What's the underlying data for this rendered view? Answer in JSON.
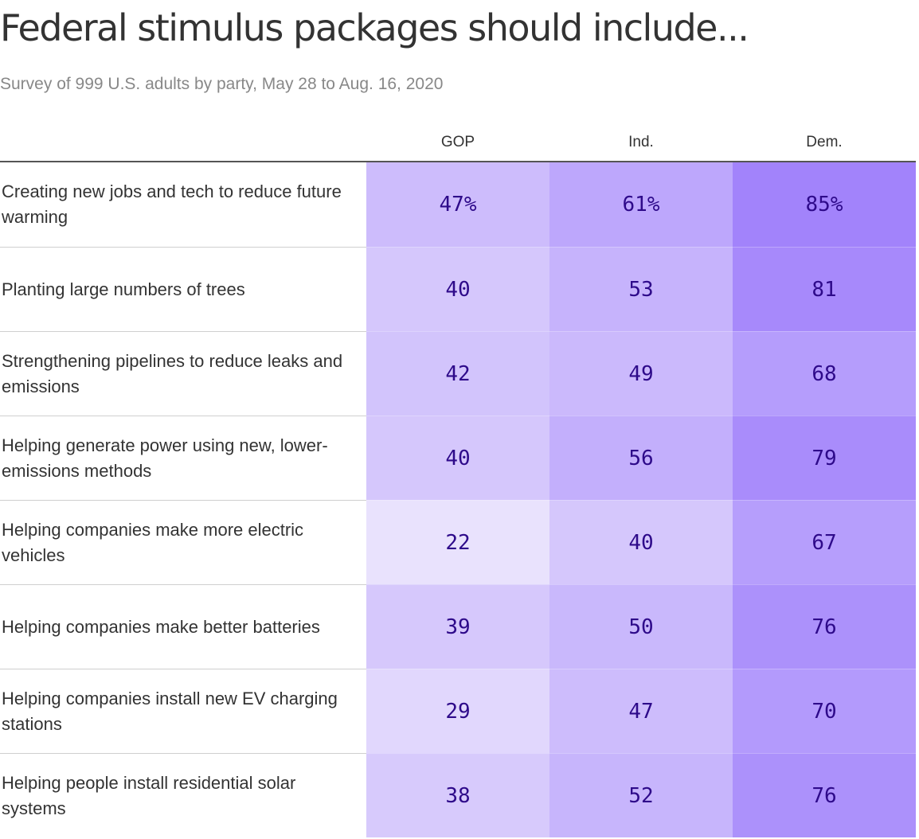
{
  "chart_data": {
    "type": "table",
    "title": "Federal stimulus packages should include...",
    "subtitle": "Survey of 999 U.S. adults by party, May 28 to Aug. 16, 2020",
    "columns": [
      "GOP",
      "Ind.",
      "Dem."
    ],
    "rows": [
      {
        "label": "Creating new jobs and tech to reduce future warming",
        "values": [
          47,
          61,
          85
        ],
        "display": [
          "47%",
          "61%",
          "85%"
        ]
      },
      {
        "label": "Planting large numbers of trees",
        "values": [
          40,
          53,
          81
        ],
        "display": [
          "40",
          "53",
          "81"
        ]
      },
      {
        "label": "Strengthening pipelines to reduce leaks and emissions",
        "values": [
          42,
          49,
          68
        ],
        "display": [
          "42",
          "49",
          "68"
        ]
      },
      {
        "label": "Helping generate power using new, lower-emissions methods",
        "values": [
          40,
          56,
          79
        ],
        "display": [
          "40",
          "56",
          "79"
        ]
      },
      {
        "label": "Helping companies make more electric vehicles",
        "values": [
          22,
          40,
          67
        ],
        "display": [
          "22",
          "40",
          "67"
        ]
      },
      {
        "label": "Helping companies make better batteries",
        "values": [
          39,
          50,
          76
        ],
        "display": [
          "39",
          "50",
          "76"
        ]
      },
      {
        "label": "Helping companies install new EV charging stations",
        "values": [
          29,
          47,
          70
        ],
        "display": [
          "29",
          "47",
          "70"
        ]
      },
      {
        "label": "Helping people install residential solar systems",
        "values": [
          38,
          52,
          76
        ],
        "display": [
          "38",
          "52",
          "76"
        ]
      }
    ],
    "color_scale": {
      "low": "#ebe5fd",
      "high": "#a080fb"
    },
    "value_color": "#2e0a8a"
  }
}
